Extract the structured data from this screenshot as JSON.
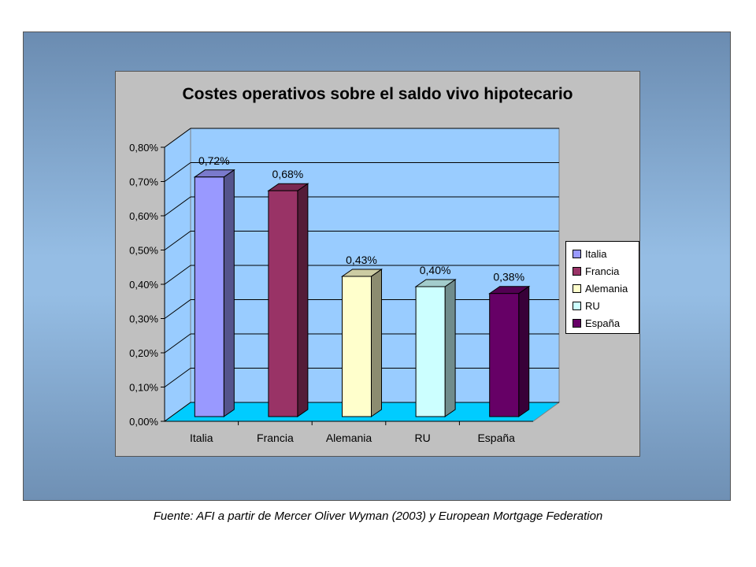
{
  "chart_data": {
    "type": "bar",
    "title": "Costes operativos sobre el saldo vivo hipotecario",
    "categories": [
      "Italia",
      "Francia",
      "Alemania",
      "RU",
      "España"
    ],
    "values": [
      0.72,
      0.68,
      0.43,
      0.4,
      0.38
    ],
    "data_labels": [
      "0,72%",
      "0,68%",
      "0,43%",
      "0,40%",
      "0,38%"
    ],
    "colors": [
      "#9999ff",
      "#993366",
      "#ffffcc",
      "#ccffff",
      "#660066"
    ],
    "yticks": [
      "0,00%",
      "0,10%",
      "0,20%",
      "0,30%",
      "0,40%",
      "0,50%",
      "0,60%",
      "0,70%",
      "0,80%"
    ],
    "ylim": [
      0,
      0.8
    ],
    "grid": true,
    "three_d": true,
    "legend": {
      "position": "right",
      "entries": [
        "Italia",
        "Francia",
        "Alemania",
        "RU",
        "España"
      ]
    },
    "xlabel": "",
    "ylabel": ""
  },
  "source": "Fuente: AFI a partir de Mercer Oliver Wyman (2003) y European Mortgage Federation"
}
